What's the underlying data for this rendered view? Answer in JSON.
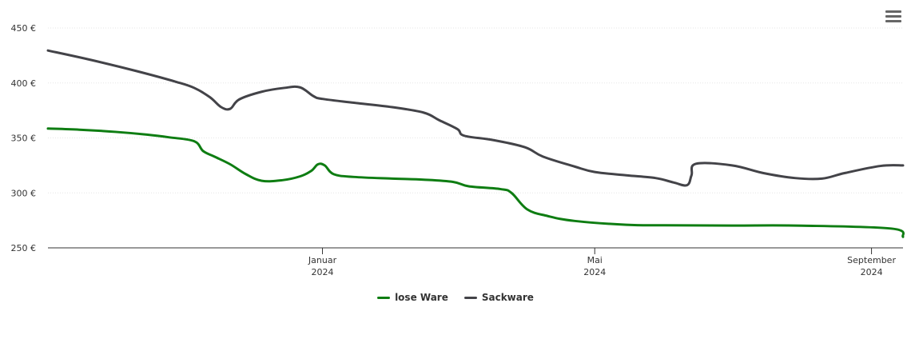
{
  "menu": {
    "icon": "hamburger-menu-icon"
  },
  "chart_data": {
    "type": "line",
    "title": "",
    "xlabel": "",
    "ylabel": "",
    "x_type": "datetime",
    "xlim": [
      "2023-09-01",
      "2024-09-15"
    ],
    "ylim": [
      250,
      450
    ],
    "y_ticks": [
      {
        "value": 250,
        "label": "250 €"
      },
      {
        "value": 300,
        "label": "300 €"
      },
      {
        "value": 350,
        "label": "350 €"
      },
      {
        "value": 400,
        "label": "400 €"
      },
      {
        "value": 450,
        "label": "450 €"
      }
    ],
    "x_ticks": [
      {
        "date": "2024-01-01",
        "month": "Januar",
        "year": "2024"
      },
      {
        "date": "2024-05-01",
        "month": "Mai",
        "year": "2024"
      },
      {
        "date": "2024-09-01",
        "month": "September",
        "year": "2024"
      }
    ],
    "grid": true,
    "legend": "bottom-center",
    "series": [
      {
        "name": "lose Ware",
        "color": "#0e7d12",
        "points": [
          [
            "2023-09-01",
            358.5
          ],
          [
            "2023-09-15",
            357.5
          ],
          [
            "2023-10-01",
            355.5
          ],
          [
            "2023-10-15",
            353
          ],
          [
            "2023-10-25",
            350.5
          ],
          [
            "2023-11-05",
            347
          ],
          [
            "2023-11-09",
            338
          ],
          [
            "2023-11-14",
            333
          ],
          [
            "2023-11-21",
            326
          ],
          [
            "2023-11-28",
            317
          ],
          [
            "2023-12-05",
            311
          ],
          [
            "2023-12-14",
            311.5
          ],
          [
            "2023-12-22",
            315
          ],
          [
            "2023-12-27",
            320
          ],
          [
            "2023-12-30",
            326
          ],
          [
            "2024-01-02",
            325
          ],
          [
            "2024-01-06",
            317
          ],
          [
            "2024-01-15",
            314.5
          ],
          [
            "2024-02-01",
            313
          ],
          [
            "2024-02-15",
            312
          ],
          [
            "2024-02-28",
            310
          ],
          [
            "2024-03-06",
            306
          ],
          [
            "2024-03-20",
            303.5
          ],
          [
            "2024-03-25",
            300
          ],
          [
            "2024-04-01",
            285
          ],
          [
            "2024-04-10",
            279
          ],
          [
            "2024-04-22",
            274.5
          ],
          [
            "2024-05-15",
            271
          ],
          [
            "2024-06-01",
            270.5
          ],
          [
            "2024-07-01",
            270.3
          ],
          [
            "2024-08-01",
            270.2
          ],
          [
            "2024-09-10",
            267.5
          ],
          [
            "2024-09-15",
            260
          ]
        ]
      },
      {
        "name": "Sackware",
        "color": "#434348",
        "points": [
          [
            "2023-09-01",
            429.5
          ],
          [
            "2023-09-20",
            421
          ],
          [
            "2023-10-10",
            411
          ],
          [
            "2023-10-28",
            401
          ],
          [
            "2023-11-05",
            395.5
          ],
          [
            "2023-11-12",
            387
          ],
          [
            "2023-11-17",
            378
          ],
          [
            "2023-11-21",
            376.5
          ],
          [
            "2023-11-25",
            385
          ],
          [
            "2023-12-05",
            392
          ],
          [
            "2023-12-15",
            395.5
          ],
          [
            "2023-12-22",
            396
          ],
          [
            "2023-12-28",
            388
          ],
          [
            "2024-01-01",
            385.5
          ],
          [
            "2024-01-15",
            382
          ],
          [
            "2024-02-01",
            378
          ],
          [
            "2024-02-15",
            373
          ],
          [
            "2024-02-22",
            366
          ],
          [
            "2024-03-01",
            358
          ],
          [
            "2024-03-04",
            352
          ],
          [
            "2024-03-17",
            348
          ],
          [
            "2024-03-31",
            341.5
          ],
          [
            "2024-04-08",
            333
          ],
          [
            "2024-04-22",
            324
          ],
          [
            "2024-05-01",
            319
          ],
          [
            "2024-05-15",
            316
          ],
          [
            "2024-05-28",
            313.5
          ],
          [
            "2024-06-05",
            309.5
          ],
          [
            "2024-06-11",
            307
          ],
          [
            "2024-06-13",
            316
          ],
          [
            "2024-06-15",
            326.5
          ],
          [
            "2024-07-01",
            325
          ],
          [
            "2024-07-15",
            318
          ],
          [
            "2024-07-29",
            313.5
          ],
          [
            "2024-08-10",
            313
          ],
          [
            "2024-08-20",
            318
          ],
          [
            "2024-09-05",
            324.5
          ],
          [
            "2024-09-15",
            325
          ]
        ]
      }
    ]
  }
}
